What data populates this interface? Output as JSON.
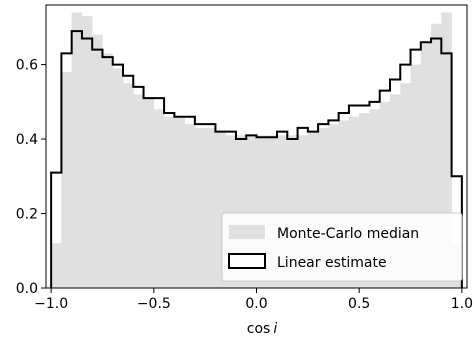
{
  "chart_data": {
    "type": "bar",
    "bin_edges": [
      -1.0,
      -0.95,
      -0.9,
      -0.85,
      -0.8,
      -0.75,
      -0.7,
      -0.65,
      -0.6,
      -0.55,
      -0.5,
      -0.45,
      -0.4,
      -0.35,
      -0.3,
      -0.25,
      -0.2,
      -0.15,
      -0.1,
      -0.05,
      0.0,
      0.05,
      0.1,
      0.15,
      0.2,
      0.25,
      0.3,
      0.35,
      0.4,
      0.45,
      0.5,
      0.55,
      0.6,
      0.65,
      0.7,
      0.75,
      0.8,
      0.85,
      0.9,
      0.95,
      1.0
    ],
    "xlabel": "cos i",
    "ylabel": "",
    "xlim": [
      -1.025,
      1.025
    ],
    "ylim": [
      0.0,
      0.76
    ],
    "xticks": [
      -1.0,
      -0.5,
      0.0,
      0.5,
      1.0
    ],
    "xtick_labels": [
      "−1.0",
      "−0.5",
      "0.0",
      "0.5",
      "1.0"
    ],
    "yticks": [
      0.0,
      0.2,
      0.4,
      0.6
    ],
    "ytick_labels": [
      "0.0",
      "0.2",
      "0.4",
      "0.6"
    ],
    "legend_position": "lower-right",
    "series": [
      {
        "name": "Monte-Carlo median",
        "style": "filled-bars",
        "color": "#e0e0e0",
        "values": [
          0.12,
          0.58,
          0.74,
          0.73,
          0.68,
          0.63,
          0.59,
          0.55,
          0.52,
          0.51,
          0.48,
          0.46,
          0.46,
          0.44,
          0.43,
          0.43,
          0.42,
          0.41,
          0.41,
          0.41,
          0.41,
          0.41,
          0.41,
          0.41,
          0.41,
          0.42,
          0.43,
          0.44,
          0.45,
          0.46,
          0.47,
          0.48,
          0.5,
          0.52,
          0.55,
          0.6,
          0.66,
          0.71,
          0.74,
          0.12
        ]
      },
      {
        "name": "Linear estimate",
        "style": "step-outline",
        "color": "#000000",
        "values": [
          0.31,
          0.63,
          0.69,
          0.67,
          0.64,
          0.62,
          0.6,
          0.57,
          0.54,
          0.51,
          0.51,
          0.47,
          0.46,
          0.46,
          0.44,
          0.44,
          0.42,
          0.42,
          0.4,
          0.41,
          0.405,
          0.405,
          0.42,
          0.4,
          0.43,
          0.42,
          0.44,
          0.45,
          0.47,
          0.49,
          0.49,
          0.5,
          0.53,
          0.56,
          0.6,
          0.64,
          0.66,
          0.67,
          0.63,
          0.3
        ]
      }
    ]
  }
}
